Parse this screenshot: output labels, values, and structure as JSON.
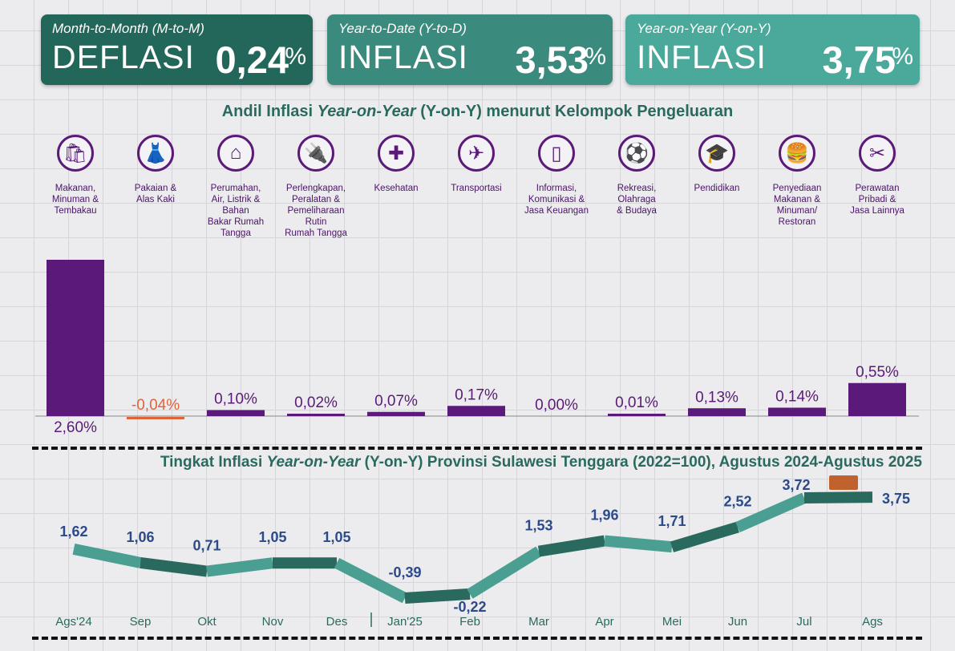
{
  "cards": [
    {
      "subtitle": "Month-to-Month (M-to-M)",
      "kind": "DEFLASI",
      "value": "0,24",
      "unit": "%",
      "color": "#23665a"
    },
    {
      "subtitle": "Year-to-Date (Y-to-D)",
      "kind": "INFLASI",
      "value": "3,53",
      "unit": "%",
      "color": "#3a8a7e"
    },
    {
      "subtitle": "Year-on-Year (Y-on-Y)",
      "kind": "INFLASI",
      "value": "3,75",
      "unit": "%",
      "color": "#4aa99b"
    }
  ],
  "bar_title": {
    "a": "Andil Inflasi ",
    "b": "Year-on-Year",
    "c": " (Y-on-Y) menurut Kelompok Pengeluaran"
  },
  "line_title": {
    "a": "Tingkat Inflasi ",
    "b": "Year-on-Year",
    "c": " (Y-on-Y) Provinsi Sulawesi Tenggara (2022=100), Agustus 2024-Agustus 2025"
  },
  "categories": [
    {
      "icon": "shopping-bag-icon",
      "glyph": "🛍",
      "label": "Makanan,\nMinuman &\nTembakau"
    },
    {
      "icon": "dress-icon",
      "glyph": "👗",
      "label": "Pakaian &\nAlas Kaki"
    },
    {
      "icon": "house-icon",
      "glyph": "⌂",
      "label": "Perumahan,\nAir, Listrik &\nBahan\nBakar Rumah\nTangga"
    },
    {
      "icon": "plug-icon",
      "glyph": "🔌",
      "label": "Perlengkapan,\nPeralatan &\nPemeliharaan\nRutin\nRumah Tangga"
    },
    {
      "icon": "medical-kit-icon",
      "glyph": "✚",
      "label": "Kesehatan"
    },
    {
      "icon": "airplane-icon",
      "glyph": "✈",
      "label": "Transportasi"
    },
    {
      "icon": "phone-icon",
      "glyph": "▯",
      "label": "Informasi,\nKomunikasi &\nJasa Keuangan"
    },
    {
      "icon": "soccer-player-icon",
      "glyph": "⚽",
      "label": "Rekreasi,\nOlahraga\n& Budaya"
    },
    {
      "icon": "graduation-cap-icon",
      "glyph": "🎓",
      "label": "Pendidikan"
    },
    {
      "icon": "fast-food-icon",
      "glyph": "🍔",
      "label": "Penyediaan\nMakanan &\nMinuman/\nRestoran"
    },
    {
      "icon": "scissors-comb-icon",
      "glyph": "✂",
      "label": "Perawatan\nPribadi &\nJasa Lainnya"
    }
  ],
  "chart_data": [
    {
      "type": "bar",
      "title": "Andil Inflasi Year-on-Year (Y-on-Y) menurut Kelompok Pengeluaran",
      "categories": [
        "Makanan, Minuman & Tembakau",
        "Pakaian & Alas Kaki",
        "Perumahan, Air, Listrik & Bahan Bakar Rumah Tangga",
        "Perlengkapan, Peralatan & Pemeliharaan Rutin Rumah Tangga",
        "Kesehatan",
        "Transportasi",
        "Informasi, Komunikasi & Jasa Keuangan",
        "Rekreasi, Olahraga & Budaya",
        "Pendidikan",
        "Penyediaan Makanan & Minuman/Restoran",
        "Perawatan Pribadi & Jasa Lainnya"
      ],
      "values": [
        2.6,
        -0.04,
        0.1,
        0.02,
        0.07,
        0.17,
        0.0,
        0.01,
        0.13,
        0.14,
        0.55
      ],
      "labels": [
        "2,60%",
        "-0,04%",
        "0,10%",
        "0,02%",
        "0,07%",
        "0,17%",
        "0,00%",
        "0,01%",
        "0,13%",
        "0,14%",
        "0,55%"
      ],
      "colors": {
        "positive": "#5b1a7a",
        "negative": "#e0643a"
      }
    },
    {
      "type": "line",
      "title": "Tingkat Inflasi Year-on-Year (Y-on-Y) Provinsi Sulawesi Tenggara (2022=100), Agustus 2024-Agustus 2025",
      "x": [
        "Ags'24",
        "Sep",
        "Okt",
        "Nov",
        "Des",
        "Jan'25",
        "Feb",
        "Mar",
        "Apr",
        "Mei",
        "Jun",
        "Jul",
        "Ags"
      ],
      "values": [
        1.62,
        1.06,
        0.71,
        1.05,
        1.05,
        -0.39,
        -0.22,
        1.53,
        1.96,
        1.71,
        2.52,
        3.72,
        3.75
      ],
      "labels": [
        "1,62",
        "1,06",
        "0,71",
        "1,05",
        "1,05",
        "-0,39",
        "-0,22",
        "1,53",
        "1,96",
        "1,71",
        "2,52",
        "3,72",
        "3,75"
      ],
      "colors": {
        "light": "#4a9e92",
        "dark": "#2a6a5e",
        "label": "#2c4a8a",
        "axis": "#2a6a5e"
      }
    }
  ]
}
